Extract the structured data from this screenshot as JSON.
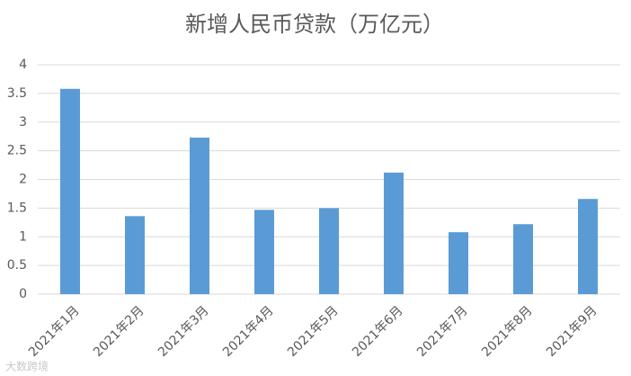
{
  "chart_data": {
    "type": "bar",
    "title": "新增人民币贷款（万亿元）",
    "categories": [
      "2021年1月",
      "2021年2月",
      "2021年3月",
      "2021年4月",
      "2021年5月",
      "2021年6月",
      "2021年7月",
      "2021年8月",
      "2021年9月"
    ],
    "values": [
      3.58,
      1.36,
      2.73,
      1.47,
      1.5,
      2.12,
      1.08,
      1.22,
      1.66
    ],
    "color": "#5b9bd5",
    "ylim": [
      0,
      4
    ],
    "yticks": [
      0,
      0.5,
      1,
      1.5,
      2,
      2.5,
      3,
      3.5,
      4
    ],
    "grid": true,
    "watermark": "大数跨境"
  }
}
